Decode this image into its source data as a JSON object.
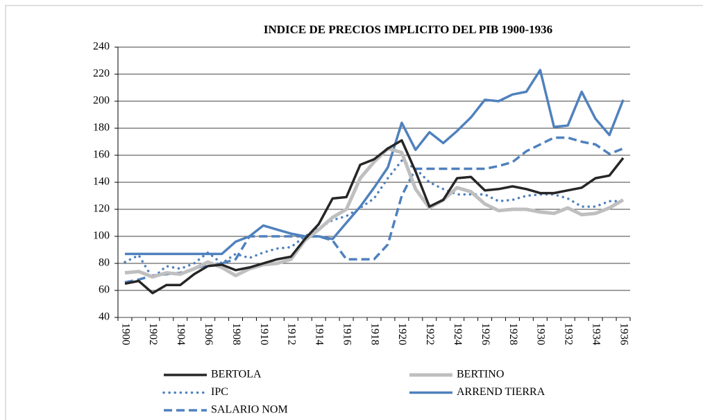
{
  "chart_data": {
    "type": "line",
    "title": "INDICE DE PRECIOS IMPLICITO DEL PIB 1900-1936",
    "categories": [
      "1900",
      null,
      "1902",
      null,
      "1904",
      null,
      "1906",
      null,
      "1908",
      null,
      "1910",
      null,
      "1912",
      null,
      "1914",
      null,
      "1916",
      null,
      "1918",
      null,
      "1920",
      null,
      "1922",
      null,
      "1924",
      null,
      "1926",
      null,
      "1928",
      null,
      "1930",
      null,
      "1932",
      null,
      "1934",
      null,
      "1936"
    ],
    "ylim": [
      40,
      240
    ],
    "yticks": [
      40,
      60,
      80,
      100,
      120,
      140,
      160,
      180,
      200,
      220,
      240
    ],
    "grid": true,
    "legend": "bottom",
    "series": [
      {
        "name": "BERTOLA",
        "color": "#262626",
        "style": "solid",
        "values": [
          65,
          67,
          58,
          64,
          64,
          72,
          78,
          79,
          75,
          77,
          80,
          83,
          85,
          98,
          109,
          128,
          129,
          153,
          157,
          165,
          171,
          148,
          122,
          127,
          143,
          144,
          134,
          135,
          137,
          135,
          132,
          132,
          134,
          136,
          143,
          145,
          158
        ]
      },
      {
        "name": "BERTINO",
        "color": "#bfbfbf",
        "style": "solid",
        "values": [
          73,
          74,
          70,
          73,
          72,
          76,
          81,
          77,
          71,
          76,
          79,
          80,
          83,
          97,
          105,
          114,
          120,
          143,
          155,
          165,
          162,
          135,
          121,
          127,
          136,
          133,
          124,
          119,
          120,
          120,
          118,
          117,
          121,
          116,
          117,
          121,
          127
        ]
      },
      {
        "name": "IPC",
        "color": "#4f81bd",
        "style": "dotted",
        "values": [
          81,
          86,
          69,
          78,
          76,
          80,
          88,
          80,
          87,
          84,
          88,
          91,
          92,
          100,
          106,
          112,
          115,
          121,
          128,
          143,
          156,
          150,
          140,
          135,
          131,
          131,
          131,
          126,
          127,
          130,
          131,
          131,
          128,
          122,
          122,
          126,
          126
        ]
      },
      {
        "name": "ARREND TIERRA",
        "color": "#4f81bd",
        "style": "solid",
        "values": [
          87,
          87,
          87,
          87,
          87,
          87,
          87,
          87,
          96,
          100,
          108,
          105,
          102,
          100,
          100,
          98,
          110,
          122,
          136,
          151,
          184,
          164,
          177,
          169,
          178,
          188,
          201,
          200,
          205,
          207,
          223,
          181,
          182,
          207,
          187,
          175,
          201
        ]
      },
      {
        "name": "SALARIO NOM",
        "color": "#4f81bd",
        "style": "dashed",
        "values": [
          66,
          68,
          71,
          72,
          73,
          76,
          79,
          80,
          83,
          100,
          100,
          100,
          100,
          100,
          100,
          97,
          83,
          83,
          83,
          94,
          130,
          150,
          150,
          150,
          150,
          150,
          150,
          152,
          155,
          163,
          168,
          173,
          173,
          170,
          168,
          161,
          165
        ]
      }
    ]
  }
}
